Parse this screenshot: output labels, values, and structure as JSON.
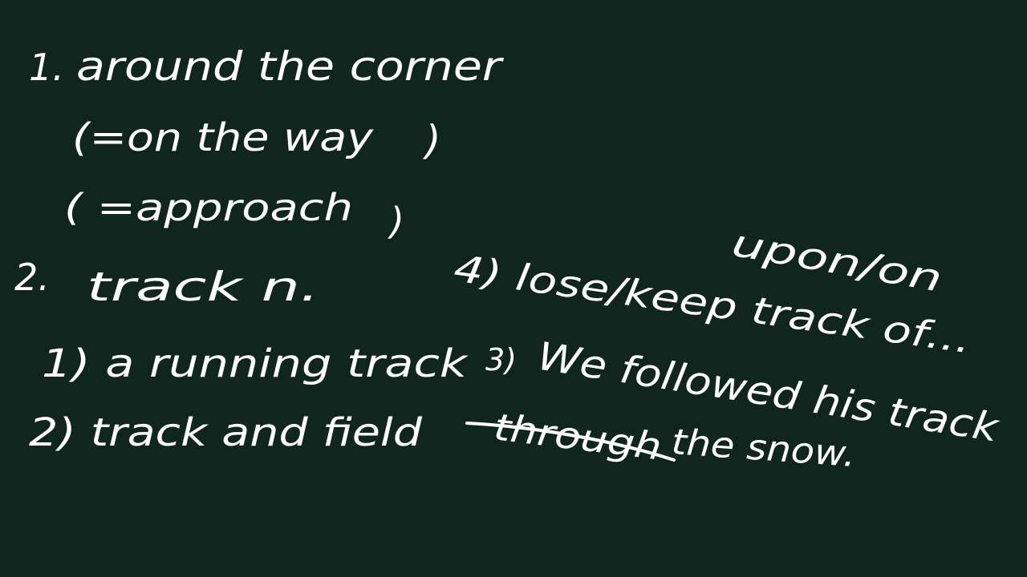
{
  "board": {
    "background": "#11251f",
    "ink": "#ffffff",
    "lines": {
      "item1_num": "1.",
      "item1_text": "around the corner",
      "item1_paren1": "(=on the way",
      "item1_paren1_close": ")",
      "item1_paren2": "( =approach",
      "item1_paren2_close": ")",
      "item2_num": "2.",
      "item2_text": "track n.",
      "sub1": "1) a running track",
      "sub2": "2) track and field",
      "sub3_num": "3)",
      "sub3_text": "We followed his track",
      "sub3_underlined": "through",
      "sub3_end": "the snow.",
      "sub4": "4) lose/keep track of...",
      "sub4_note": "upon/on"
    }
  }
}
